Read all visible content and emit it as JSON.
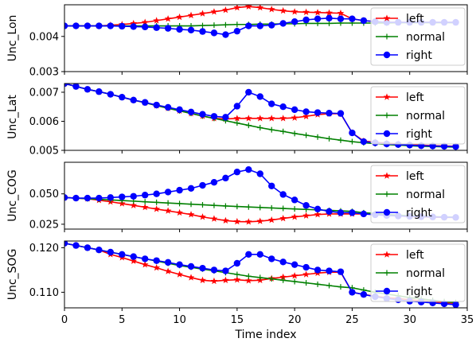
{
  "chart_data": [
    {
      "type": "line",
      "ylabel": "Unc_Lon",
      "ylim": [
        0.003,
        0.0049
      ],
      "yticks": [
        0.003,
        0.004
      ],
      "ytick_labels": [
        "0.003",
        "0.004"
      ],
      "xlim": [
        0,
        35
      ],
      "x": [
        0,
        1,
        2,
        3,
        4,
        5,
        6,
        7,
        8,
        9,
        10,
        11,
        12,
        13,
        14,
        15,
        16,
        17,
        18,
        19,
        20,
        21,
        22,
        23,
        24,
        25,
        26,
        27,
        28,
        29,
        30,
        31,
        32,
        33,
        34
      ],
      "series": [
        {
          "name": "left",
          "color": "#ff0000",
          "marker": "star",
          "values": [
            0.0043,
            0.0043,
            0.0043,
            0.0043,
            0.00432,
            0.00434,
            0.00437,
            0.0044,
            0.00445,
            0.0045,
            0.00455,
            0.0046,
            0.00465,
            0.0047,
            0.00475,
            0.00482,
            0.00485,
            0.00482,
            0.00477,
            0.00473,
            0.0047,
            0.00469,
            0.00468,
            0.00467,
            0.00466,
            0.0045,
            0.00445,
            0.00442,
            0.0044,
            0.0044,
            0.0044,
            0.0044,
            0.0044,
            0.0044,
            0.0044
          ]
        },
        {
          "name": "normal",
          "color": "#008000",
          "marker": "plus",
          "values": [
            0.0043,
            0.0043,
            0.0043,
            0.0043,
            0.0043,
            0.0043,
            0.0043,
            0.0043,
            0.0043,
            0.0043,
            0.0043,
            0.0043,
            0.00431,
            0.00432,
            0.00433,
            0.00434,
            0.00434,
            0.00435,
            0.00435,
            0.00436,
            0.00436,
            0.00437,
            0.00437,
            0.00437,
            0.00438,
            0.00438,
            0.00438,
            0.00438,
            0.00438,
            0.00439,
            0.00439,
            0.00439,
            0.00439,
            0.00439,
            0.00439
          ]
        },
        {
          "name": "right",
          "color": "#0000ff",
          "marker": "circle",
          "values": [
            0.0043,
            0.0043,
            0.0043,
            0.0043,
            0.0043,
            0.00429,
            0.00428,
            0.00427,
            0.00425,
            0.00423,
            0.0042,
            0.00418,
            0.00414,
            0.0041,
            0.00405,
            0.00415,
            0.0043,
            0.0043,
            0.00432,
            0.00437,
            0.00442,
            0.00447,
            0.0045,
            0.00452,
            0.0045,
            0.0045,
            0.00445,
            0.00442,
            0.0044,
            0.0044,
            0.0044,
            0.0044,
            0.0044,
            0.0044,
            0.0044
          ]
        }
      ]
    },
    {
      "type": "line",
      "ylabel": "Unc_Lat",
      "ylim": [
        0.005,
        0.0073
      ],
      "yticks": [
        0.005,
        0.006,
        0.007
      ],
      "ytick_labels": [
        "0.005",
        "0.006",
        "0.007"
      ],
      "xlim": [
        0,
        35
      ],
      "x": [
        0,
        1,
        2,
        3,
        4,
        5,
        6,
        7,
        8,
        9,
        10,
        11,
        12,
        13,
        14,
        15,
        16,
        17,
        18,
        19,
        20,
        21,
        22,
        23,
        24,
        25,
        26,
        27,
        28,
        29,
        30,
        31,
        32,
        33,
        34
      ],
      "series": [
        {
          "name": "left",
          "color": "#ff0000",
          "marker": "star",
          "values": [
            0.0073,
            0.0072,
            0.0071,
            0.00702,
            0.00693,
            0.00683,
            0.00673,
            0.00664,
            0.00654,
            0.00645,
            0.00636,
            0.00627,
            0.00618,
            0.0061,
            0.00608,
            0.0061,
            0.0061,
            0.0061,
            0.0061,
            0.0061,
            0.00612,
            0.00617,
            0.00623,
            0.00626,
            0.00626,
            0.0056,
            0.00532,
            0.00528,
            0.00525,
            0.00522,
            0.0052,
            0.00518,
            0.00516,
            0.00515,
            0.00514
          ]
        },
        {
          "name": "normal",
          "color": "#008000",
          "marker": "plus",
          "values": [
            0.0073,
            0.0072,
            0.0071,
            0.00702,
            0.00693,
            0.00683,
            0.00673,
            0.00664,
            0.00654,
            0.00645,
            0.00636,
            0.00627,
            0.00618,
            0.0061,
            0.00602,
            0.00594,
            0.00586,
            0.00578,
            0.00571,
            0.00565,
            0.00558,
            0.00552,
            0.00546,
            0.0054,
            0.00535,
            0.0053,
            0.00526,
            0.00523,
            0.0052,
            0.00518,
            0.00516,
            0.00514,
            0.00513,
            0.00512,
            0.00511
          ]
        },
        {
          "name": "right",
          "color": "#0000ff",
          "marker": "circle",
          "values": [
            0.0073,
            0.0072,
            0.0071,
            0.00702,
            0.00693,
            0.00683,
            0.00673,
            0.00665,
            0.00656,
            0.00648,
            0.0064,
            0.00632,
            0.00624,
            0.00617,
            0.00614,
            0.00652,
            0.007,
            0.00685,
            0.0066,
            0.0065,
            0.0064,
            0.00633,
            0.0063,
            0.00628,
            0.00627,
            0.0056,
            0.0053,
            0.00526,
            0.00522,
            0.0052,
            0.00518,
            0.00516,
            0.00515,
            0.00514,
            0.00513
          ]
        }
      ]
    },
    {
      "type": "line",
      "ylabel": "Unc_COG",
      "ylim": [
        0.021,
        0.076
      ],
      "yticks": [
        0.025,
        0.05
      ],
      "ytick_labels": [
        "0.025",
        "0.050"
      ],
      "xlim": [
        0,
        35
      ],
      "x": [
        0,
        1,
        2,
        3,
        4,
        5,
        6,
        7,
        8,
        9,
        10,
        11,
        12,
        13,
        14,
        15,
        16,
        17,
        18,
        19,
        20,
        21,
        22,
        23,
        24,
        25,
        26,
        27,
        28,
        29,
        30,
        31,
        32,
        33,
        34
      ],
      "series": [
        {
          "name": "left",
          "color": "#ff0000",
          "marker": "star",
          "values": [
            0.047,
            0.0465,
            0.046,
            0.0448,
            0.0435,
            0.042,
            0.0405,
            0.039,
            0.0375,
            0.036,
            0.0345,
            0.033,
            0.031,
            0.0295,
            0.028,
            0.0272,
            0.027,
            0.0275,
            0.0285,
            0.0298,
            0.031,
            0.032,
            0.033,
            0.0335,
            0.0335,
            0.0335,
            0.0335,
            0.0333,
            0.0325,
            0.0318,
            0.0313,
            0.031,
            0.0308,
            0.0306,
            0.0305
          ]
        },
        {
          "name": "normal",
          "color": "#008000",
          "marker": "plus",
          "values": [
            0.047,
            0.0465,
            0.046,
            0.0455,
            0.045,
            0.0445,
            0.044,
            0.0435,
            0.043,
            0.0425,
            0.042,
            0.0415,
            0.041,
            0.0405,
            0.04,
            0.0396,
            0.0392,
            0.0388,
            0.0384,
            0.038,
            0.0376,
            0.0372,
            0.0368,
            0.0364,
            0.036,
            0.0356,
            0.0345,
            0.0338,
            0.0332,
            0.0325,
            0.032,
            0.0315,
            0.0312,
            0.031,
            0.0308
          ]
        },
        {
          "name": "right",
          "color": "#0000ff",
          "marker": "circle",
          "values": [
            0.047,
            0.0465,
            0.0465,
            0.0465,
            0.047,
            0.0475,
            0.048,
            0.049,
            0.05,
            0.0515,
            0.053,
            0.0545,
            0.057,
            0.0595,
            0.063,
            0.068,
            0.07,
            0.0665,
            0.0565,
            0.0495,
            0.045,
            0.0405,
            0.0375,
            0.0355,
            0.0345,
            0.0345,
            0.0335,
            0.0328,
            0.0322,
            0.0318,
            0.0315,
            0.0312,
            0.031,
            0.0308,
            0.0306
          ]
        }
      ]
    },
    {
      "type": "line",
      "ylabel": "Unc_SOG",
      "xlabel": "Time index",
      "ylim": [
        0.1065,
        0.1215
      ],
      "yticks": [
        0.11,
        0.12
      ],
      "ytick_labels": [
        "0.110",
        "0.120"
      ],
      "xlim": [
        0,
        35
      ],
      "xticks": [
        0,
        5,
        10,
        15,
        20,
        25,
        30,
        35
      ],
      "xtick_labels": [
        "0",
        "5",
        "10",
        "15",
        "20",
        "25",
        "30",
        "35"
      ],
      "x": [
        0,
        1,
        2,
        3,
        4,
        5,
        6,
        7,
        8,
        9,
        10,
        11,
        12,
        13,
        14,
        15,
        16,
        17,
        18,
        19,
        20,
        21,
        22,
        23,
        24,
        25,
        26,
        27,
        28,
        29,
        30,
        31,
        32,
        33,
        34
      ],
      "series": [
        {
          "name": "left",
          "color": "#ff0000",
          "marker": "star",
          "values": [
            0.121,
            0.1205,
            0.12,
            0.1195,
            0.1185,
            0.1178,
            0.117,
            0.1162,
            0.1155,
            0.1147,
            0.114,
            0.1133,
            0.1127,
            0.1125,
            0.1127,
            0.1128,
            0.1126,
            0.1127,
            0.1131,
            0.1134,
            0.1137,
            0.114,
            0.1143,
            0.1145,
            0.1145,
            0.11,
            0.1095,
            0.1091,
            0.1088,
            0.1086,
            0.1083,
            0.1081,
            0.1079,
            0.1077,
            0.1075
          ]
        },
        {
          "name": "normal",
          "color": "#008000",
          "marker": "plus",
          "values": [
            0.121,
            0.1205,
            0.12,
            0.1195,
            0.119,
            0.1185,
            0.118,
            0.1175,
            0.117,
            0.1165,
            0.116,
            0.1156,
            0.1152,
            0.1148,
            0.1144,
            0.114,
            0.1136,
            0.1133,
            0.113,
            0.1127,
            0.1124,
            0.1121,
            0.1118,
            0.1115,
            0.1112,
            0.111,
            0.1105,
            0.11,
            0.1096,
            0.1092,
            0.1088,
            0.1085,
            0.1082,
            0.1079,
            0.1077
          ]
        },
        {
          "name": "right",
          "color": "#0000ff",
          "marker": "circle",
          "values": [
            0.121,
            0.1205,
            0.12,
            0.1195,
            0.119,
            0.1185,
            0.118,
            0.1175,
            0.1171,
            0.1167,
            0.1162,
            0.1158,
            0.1154,
            0.115,
            0.1148,
            0.1165,
            0.1185,
            0.1185,
            0.1175,
            0.1168,
            0.1162,
            0.1156,
            0.115,
            0.1148,
            0.1146,
            0.11,
            0.1095,
            0.109,
            0.1086,
            0.1083,
            0.108,
            0.1078,
            0.1076,
            0.1074,
            0.1072
          ]
        }
      ]
    }
  ]
}
